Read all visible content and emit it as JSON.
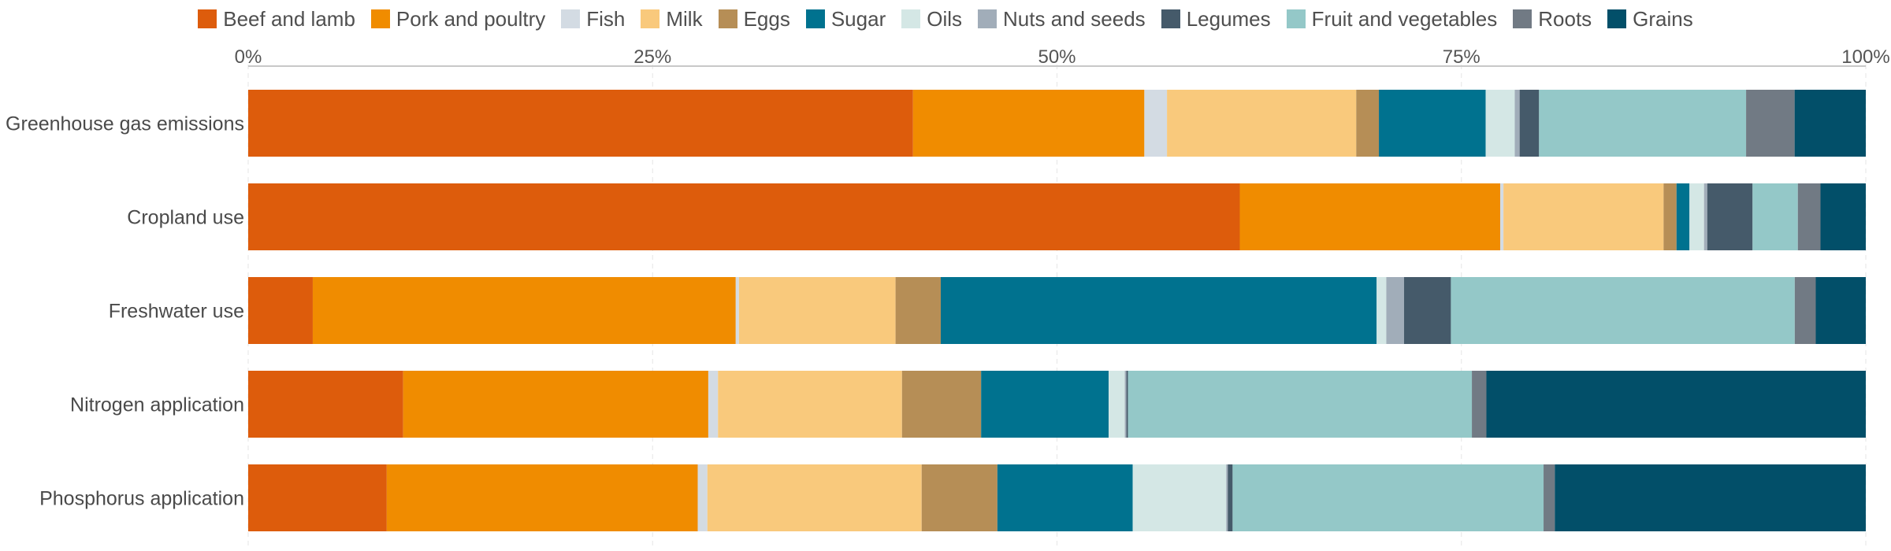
{
  "chart_data": {
    "type": "bar",
    "orientation": "horizontal",
    "stacked": "percent",
    "categories": [
      "Greenhouse gas emissions",
      "Cropland use",
      "Freshwater use",
      "Nitrogen application",
      "Phosphorus application"
    ],
    "xlim": [
      0,
      100
    ],
    "x_ticks": [
      "0%",
      "25%",
      "50%",
      "75%",
      "100%"
    ],
    "grid": true,
    "legend_position": "top",
    "series": [
      {
        "name": "Beef and lamb",
        "color": "#dd5c0c",
        "values": [
          41.1,
          61.3,
          4.0,
          9.6,
          8.6
        ]
      },
      {
        "name": "Pork and poultry",
        "color": "#f08c00",
        "values": [
          14.3,
          16.1,
          26.2,
          18.9,
          19.3
        ]
      },
      {
        "name": "Fish",
        "color": "#d3dbe3",
        "values": [
          1.4,
          0.2,
          0.2,
          0.6,
          0.6
        ]
      },
      {
        "name": "Milk",
        "color": "#f9c97c",
        "values": [
          11.7,
          9.9,
          9.7,
          11.4,
          13.3
        ]
      },
      {
        "name": "Eggs",
        "color": "#b68e56",
        "values": [
          1.4,
          0.8,
          2.8,
          4.9,
          4.7
        ]
      },
      {
        "name": "Sugar",
        "color": "#00728f",
        "values": [
          6.6,
          0.8,
          27.0,
          7.9,
          8.4
        ]
      },
      {
        "name": "Oils",
        "color": "#d4e7e5",
        "values": [
          1.8,
          0.9,
          0.6,
          1.0,
          5.8
        ]
      },
      {
        "name": "Nuts and seeds",
        "color": "#a1adb9",
        "values": [
          0.3,
          0.2,
          1.1,
          0.1,
          0.1
        ]
      },
      {
        "name": "Legumes",
        "color": "#455a6a",
        "values": [
          1.2,
          2.8,
          2.9,
          0.1,
          0.3
        ]
      },
      {
        "name": "Fruit and vegetables",
        "color": "#94c8c8",
        "values": [
          12.8,
          2.8,
          21.3,
          21.3,
          19.3
        ]
      },
      {
        "name": "Roots",
        "color": "#717a84",
        "values": [
          3.0,
          1.4,
          1.3,
          0.9,
          0.7
        ]
      },
      {
        "name": "Grains",
        "color": "#024f69",
        "values": [
          4.4,
          2.8,
          3.1,
          23.5,
          19.3
        ]
      }
    ]
  }
}
